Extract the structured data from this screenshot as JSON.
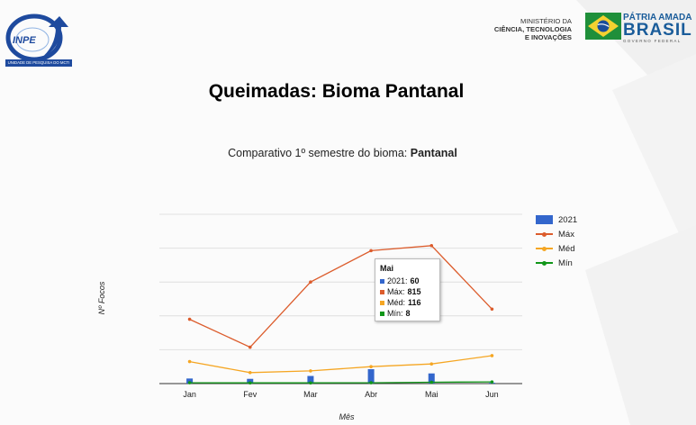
{
  "header": {
    "inpe_logo_text": "INPE",
    "inpe_subtitle": "UNIDADE DE PESQUISA DO MCTI",
    "ministry_lines": [
      "MINISTÉRIO DA",
      "CIÊNCIA, TECNOLOGIA",
      "E INOVAÇÕES"
    ],
    "gov_line1": "PÁTRIA AMADA",
    "gov_line2": "BRASIL",
    "gov_line3": "GOVERNO FEDERAL"
  },
  "page_title": "Queimadas: Bioma Pantanal",
  "chart_title_prefix": "Comparativo 1º semestre do bioma: ",
  "chart_title_bold": "Pantanal",
  "chart_data": {
    "type": "bar",
    "xlabel": "Mês",
    "ylabel": "Nº Focos",
    "ylim": [
      0,
      1000
    ],
    "grid": true,
    "legend_position": "right",
    "categories": [
      "Jan",
      "Fev",
      "Mar",
      "Abr",
      "Mai",
      "Jun"
    ],
    "series": [
      {
        "name": "2021",
        "kind": "bar",
        "color": "#3366cc",
        "values": [
          30,
          28,
          45,
          85,
          60,
          5
        ]
      },
      {
        "name": "Máx",
        "kind": "line",
        "color": "#dc5c2c",
        "values": [
          380,
          215,
          600,
          785,
          815,
          440
        ]
      },
      {
        "name": "Méd",
        "kind": "line",
        "color": "#f5a623",
        "values": [
          130,
          65,
          75,
          100,
          116,
          165
        ]
      },
      {
        "name": "Mín",
        "kind": "line",
        "color": "#109618",
        "values": [
          5,
          4,
          4,
          5,
          8,
          10
        ]
      }
    ]
  },
  "tooltip": {
    "title": "Mai",
    "rows": [
      {
        "label": "2021: ",
        "value": "60",
        "color": "#3366cc"
      },
      {
        "label": "Máx: ",
        "value": "815",
        "color": "#dc5c2c"
      },
      {
        "label": "Méd: ",
        "value": "116",
        "color": "#f5a623"
      },
      {
        "label": "Mín: ",
        "value": "8",
        "color": "#109618"
      }
    ]
  }
}
